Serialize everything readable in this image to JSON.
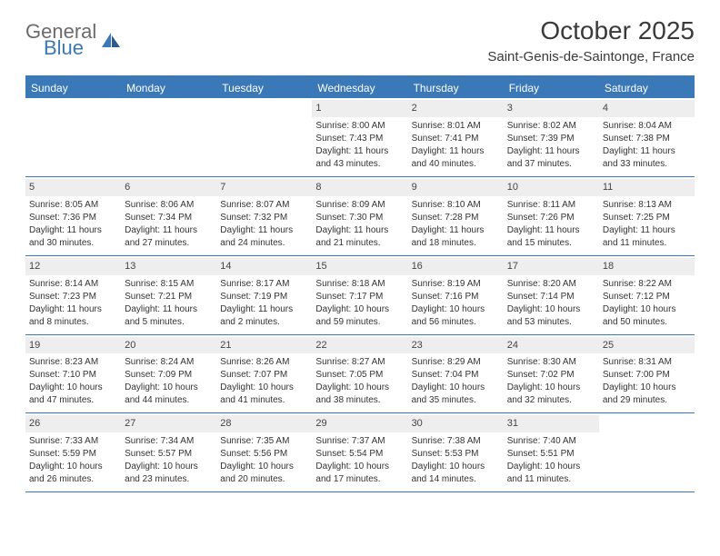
{
  "brand": {
    "part1": "General",
    "part2": "Blue"
  },
  "title": "October 2025",
  "location": "Saint-Genis-de-Saintonge, France",
  "colors": {
    "accent": "#3b78b8",
    "daynum_bg": "#eeeeee",
    "text": "#333333",
    "header_text": "#3a3a3a"
  },
  "weekdays": [
    "Sunday",
    "Monday",
    "Tuesday",
    "Wednesday",
    "Thursday",
    "Friday",
    "Saturday"
  ],
  "weeks": [
    [
      {
        "n": "",
        "sr": "",
        "ss": "",
        "dl1": "",
        "dl2": ""
      },
      {
        "n": "",
        "sr": "",
        "ss": "",
        "dl1": "",
        "dl2": ""
      },
      {
        "n": "",
        "sr": "",
        "ss": "",
        "dl1": "",
        "dl2": ""
      },
      {
        "n": "1",
        "sr": "Sunrise: 8:00 AM",
        "ss": "Sunset: 7:43 PM",
        "dl1": "Daylight: 11 hours",
        "dl2": "and 43 minutes."
      },
      {
        "n": "2",
        "sr": "Sunrise: 8:01 AM",
        "ss": "Sunset: 7:41 PM",
        "dl1": "Daylight: 11 hours",
        "dl2": "and 40 minutes."
      },
      {
        "n": "3",
        "sr": "Sunrise: 8:02 AM",
        "ss": "Sunset: 7:39 PM",
        "dl1": "Daylight: 11 hours",
        "dl2": "and 37 minutes."
      },
      {
        "n": "4",
        "sr": "Sunrise: 8:04 AM",
        "ss": "Sunset: 7:38 PM",
        "dl1": "Daylight: 11 hours",
        "dl2": "and 33 minutes."
      }
    ],
    [
      {
        "n": "5",
        "sr": "Sunrise: 8:05 AM",
        "ss": "Sunset: 7:36 PM",
        "dl1": "Daylight: 11 hours",
        "dl2": "and 30 minutes."
      },
      {
        "n": "6",
        "sr": "Sunrise: 8:06 AM",
        "ss": "Sunset: 7:34 PM",
        "dl1": "Daylight: 11 hours",
        "dl2": "and 27 minutes."
      },
      {
        "n": "7",
        "sr": "Sunrise: 8:07 AM",
        "ss": "Sunset: 7:32 PM",
        "dl1": "Daylight: 11 hours",
        "dl2": "and 24 minutes."
      },
      {
        "n": "8",
        "sr": "Sunrise: 8:09 AM",
        "ss": "Sunset: 7:30 PM",
        "dl1": "Daylight: 11 hours",
        "dl2": "and 21 minutes."
      },
      {
        "n": "9",
        "sr": "Sunrise: 8:10 AM",
        "ss": "Sunset: 7:28 PM",
        "dl1": "Daylight: 11 hours",
        "dl2": "and 18 minutes."
      },
      {
        "n": "10",
        "sr": "Sunrise: 8:11 AM",
        "ss": "Sunset: 7:26 PM",
        "dl1": "Daylight: 11 hours",
        "dl2": "and 15 minutes."
      },
      {
        "n": "11",
        "sr": "Sunrise: 8:13 AM",
        "ss": "Sunset: 7:25 PM",
        "dl1": "Daylight: 11 hours",
        "dl2": "and 11 minutes."
      }
    ],
    [
      {
        "n": "12",
        "sr": "Sunrise: 8:14 AM",
        "ss": "Sunset: 7:23 PM",
        "dl1": "Daylight: 11 hours",
        "dl2": "and 8 minutes."
      },
      {
        "n": "13",
        "sr": "Sunrise: 8:15 AM",
        "ss": "Sunset: 7:21 PM",
        "dl1": "Daylight: 11 hours",
        "dl2": "and 5 minutes."
      },
      {
        "n": "14",
        "sr": "Sunrise: 8:17 AM",
        "ss": "Sunset: 7:19 PM",
        "dl1": "Daylight: 11 hours",
        "dl2": "and 2 minutes."
      },
      {
        "n": "15",
        "sr": "Sunrise: 8:18 AM",
        "ss": "Sunset: 7:17 PM",
        "dl1": "Daylight: 10 hours",
        "dl2": "and 59 minutes."
      },
      {
        "n": "16",
        "sr": "Sunrise: 8:19 AM",
        "ss": "Sunset: 7:16 PM",
        "dl1": "Daylight: 10 hours",
        "dl2": "and 56 minutes."
      },
      {
        "n": "17",
        "sr": "Sunrise: 8:20 AM",
        "ss": "Sunset: 7:14 PM",
        "dl1": "Daylight: 10 hours",
        "dl2": "and 53 minutes."
      },
      {
        "n": "18",
        "sr": "Sunrise: 8:22 AM",
        "ss": "Sunset: 7:12 PM",
        "dl1": "Daylight: 10 hours",
        "dl2": "and 50 minutes."
      }
    ],
    [
      {
        "n": "19",
        "sr": "Sunrise: 8:23 AM",
        "ss": "Sunset: 7:10 PM",
        "dl1": "Daylight: 10 hours",
        "dl2": "and 47 minutes."
      },
      {
        "n": "20",
        "sr": "Sunrise: 8:24 AM",
        "ss": "Sunset: 7:09 PM",
        "dl1": "Daylight: 10 hours",
        "dl2": "and 44 minutes."
      },
      {
        "n": "21",
        "sr": "Sunrise: 8:26 AM",
        "ss": "Sunset: 7:07 PM",
        "dl1": "Daylight: 10 hours",
        "dl2": "and 41 minutes."
      },
      {
        "n": "22",
        "sr": "Sunrise: 8:27 AM",
        "ss": "Sunset: 7:05 PM",
        "dl1": "Daylight: 10 hours",
        "dl2": "and 38 minutes."
      },
      {
        "n": "23",
        "sr": "Sunrise: 8:29 AM",
        "ss": "Sunset: 7:04 PM",
        "dl1": "Daylight: 10 hours",
        "dl2": "and 35 minutes."
      },
      {
        "n": "24",
        "sr": "Sunrise: 8:30 AM",
        "ss": "Sunset: 7:02 PM",
        "dl1": "Daylight: 10 hours",
        "dl2": "and 32 minutes."
      },
      {
        "n": "25",
        "sr": "Sunrise: 8:31 AM",
        "ss": "Sunset: 7:00 PM",
        "dl1": "Daylight: 10 hours",
        "dl2": "and 29 minutes."
      }
    ],
    [
      {
        "n": "26",
        "sr": "Sunrise: 7:33 AM",
        "ss": "Sunset: 5:59 PM",
        "dl1": "Daylight: 10 hours",
        "dl2": "and 26 minutes."
      },
      {
        "n": "27",
        "sr": "Sunrise: 7:34 AM",
        "ss": "Sunset: 5:57 PM",
        "dl1": "Daylight: 10 hours",
        "dl2": "and 23 minutes."
      },
      {
        "n": "28",
        "sr": "Sunrise: 7:35 AM",
        "ss": "Sunset: 5:56 PM",
        "dl1": "Daylight: 10 hours",
        "dl2": "and 20 minutes."
      },
      {
        "n": "29",
        "sr": "Sunrise: 7:37 AM",
        "ss": "Sunset: 5:54 PM",
        "dl1": "Daylight: 10 hours",
        "dl2": "and 17 minutes."
      },
      {
        "n": "30",
        "sr": "Sunrise: 7:38 AM",
        "ss": "Sunset: 5:53 PM",
        "dl1": "Daylight: 10 hours",
        "dl2": "and 14 minutes."
      },
      {
        "n": "31",
        "sr": "Sunrise: 7:40 AM",
        "ss": "Sunset: 5:51 PM",
        "dl1": "Daylight: 10 hours",
        "dl2": "and 11 minutes."
      },
      {
        "n": "",
        "sr": "",
        "ss": "",
        "dl1": "",
        "dl2": ""
      }
    ]
  ]
}
